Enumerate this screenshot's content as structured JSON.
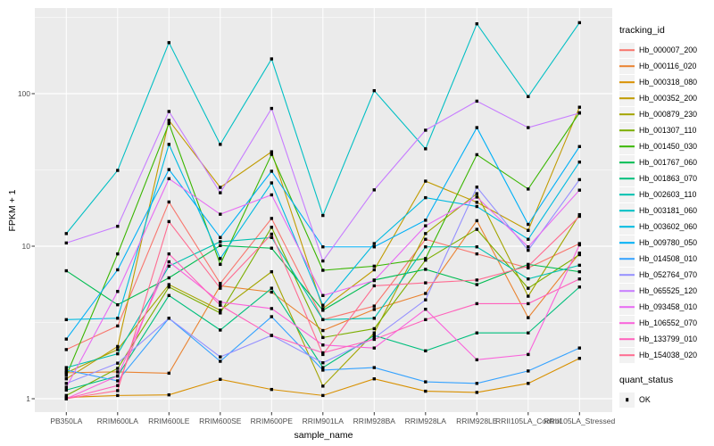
{
  "chart_data": {
    "type": "line",
    "title": "",
    "xlabel": "sample_name",
    "ylabel": "FPKM + 1",
    "y_scale": "log10",
    "ylim": [
      0.82,
      360
    ],
    "y_ticks": [
      1,
      10,
      100
    ],
    "y_minor_ticks": [
      3.1623,
      31.623,
      316.23
    ],
    "grid": "white major+minor gridlines on gray panel",
    "legend_position": "right",
    "marker": {
      "shape": "square",
      "color": "#000000",
      "size": 3.4
    },
    "categories": [
      "PB350LA",
      "RRIM600LA",
      "RRIM600LE",
      "RRIM600SE",
      "RRIM600PE",
      "RRIM901LA",
      "RRIM928BA",
      "RRIM928LA",
      "RRIM928LE",
      "RRII105LA_Control",
      "RRII105LA_Stressed"
    ],
    "series": [
      {
        "name": "Hb_000007_200",
        "color": "#F8766D",
        "values": [
          2.1,
          3.0,
          19.5,
          5.7,
          15.2,
          3.3,
          4.05,
          11.1,
          8.9,
          7.2,
          10.4
        ]
      },
      {
        "name": "Hb_000116_020",
        "color": "#EA8331",
        "values": [
          1.48,
          1.5,
          1.47,
          5.5,
          5.0,
          2.8,
          3.85,
          4.9,
          14.7,
          3.4,
          9.0
        ]
      },
      {
        "name": "Hb_000318_080",
        "color": "#D89000",
        "values": [
          1.02,
          1.05,
          1.06,
          1.34,
          1.15,
          1.05,
          1.35,
          1.12,
          1.1,
          1.26,
          1.84
        ]
      },
      {
        "name": "Hb_000352_200",
        "color": "#C09B00",
        "values": [
          1.35,
          2.2,
          66.8,
          24.3,
          41.6,
          3.9,
          7.0,
          26.7,
          19.4,
          12.7,
          81.5
        ]
      },
      {
        "name": "Hb_000879_230",
        "color": "#A3A500",
        "values": [
          1.48,
          2.1,
          5.6,
          3.8,
          6.8,
          1.21,
          2.7,
          12.1,
          22.1,
          4.7,
          16.1
        ]
      },
      {
        "name": "Hb_001307_110",
        "color": "#7CAE00",
        "values": [
          1.05,
          1.58,
          5.4,
          3.65,
          13.3,
          2.52,
          2.88,
          8.1,
          12.9,
          5.3,
          8.8
        ]
      },
      {
        "name": "Hb_001450_030",
        "color": "#39B600",
        "values": [
          1.42,
          8.9,
          63.8,
          7.6,
          40.0,
          6.95,
          7.4,
          8.3,
          39.8,
          23.7,
          75.0
        ]
      },
      {
        "name": "Hb_001767_060",
        "color": "#00BC51",
        "values": [
          6.9,
          4.13,
          6.2,
          10.1,
          9.7,
          3.8,
          6.0,
          7.05,
          5.6,
          7.6,
          6.8
        ]
      },
      {
        "name": "Hb_001863_070",
        "color": "#00BF7D",
        "values": [
          1.14,
          1.41,
          4.75,
          2.82,
          5.3,
          1.6,
          2.6,
          2.06,
          2.7,
          2.7,
          5.4
        ]
      },
      {
        "name": "Hb_002603_110",
        "color": "#00C0AF",
        "values": [
          1.6,
          1.97,
          7.4,
          10.7,
          11.4,
          3.3,
          3.37,
          9.9,
          9.9,
          6.1,
          7.5
        ]
      },
      {
        "name": "Hb_003181_060",
        "color": "#00BFC4",
        "values": [
          12.1,
          31.4,
          216.0,
          46.5,
          169.0,
          15.9,
          104.6,
          43.5,
          287.0,
          95.7,
          292.0
        ]
      },
      {
        "name": "Hb_003602_060",
        "color": "#00BAE0",
        "values": [
          3.3,
          3.37,
          46.5,
          8.3,
          26.0,
          4.1,
          10.4,
          20.8,
          18.2,
          11.1,
          35.6
        ]
      },
      {
        "name": "Hb_009780_050",
        "color": "#00B0F6",
        "values": [
          2.46,
          7.0,
          31.8,
          11.4,
          31.0,
          9.9,
          9.9,
          14.8,
          59.9,
          13.9,
          45.0
        ]
      },
      {
        "name": "Hb_014508_010",
        "color": "#35A2FF",
        "values": [
          1.54,
          1.31,
          3.37,
          1.76,
          3.45,
          1.54,
          1.6,
          1.29,
          1.26,
          1.52,
          2.15
        ]
      },
      {
        "name": "Hb_052764_070",
        "color": "#9590FF",
        "values": [
          1.26,
          1.71,
          3.37,
          1.88,
          2.6,
          1.72,
          2.5,
          4.45,
          24.4,
          9.4,
          27.3
        ]
      },
      {
        "name": "Hb_065525_120",
        "color": "#C77CFF",
        "values": [
          10.5,
          13.5,
          76.4,
          22.4,
          80.0,
          8.0,
          23.4,
          57.6,
          89.3,
          59.9,
          74.6
        ]
      },
      {
        "name": "Hb_093458_010",
        "color": "#E76BF3",
        "values": [
          1.19,
          5.05,
          27.7,
          16.2,
          21.7,
          4.75,
          5.95,
          13.6,
          21.0,
          9.9,
          23.3
        ]
      },
      {
        "name": "Hb_106552_070",
        "color": "#FA62DB",
        "values": [
          1.0,
          1.41,
          7.9,
          4.3,
          3.9,
          2.25,
          2.15,
          3.86,
          1.8,
          1.95,
          10.2
        ]
      },
      {
        "name": "Hb_133799_010",
        "color": "#FF62BC",
        "values": [
          1.0,
          1.22,
          8.9,
          4.1,
          2.6,
          2.0,
          2.45,
          3.3,
          4.2,
          4.2,
          6.1
        ]
      },
      {
        "name": "Hb_154038_020",
        "color": "#FF6C91",
        "values": [
          1.0,
          1.13,
          14.5,
          5.3,
          12.0,
          1.95,
          5.5,
          5.75,
          6.0,
          7.4,
          15.7
        ]
      }
    ]
  },
  "legends": {
    "tracking_title": "tracking_id",
    "quant_title": "quant_status",
    "quant_items": [
      {
        "label": "OK"
      }
    ]
  },
  "panel": {
    "background": "#EBEBEB",
    "gridline_color": "#FFFFFF",
    "tick_color": "#333333",
    "tick_label_color": "#4D4D4D"
  }
}
